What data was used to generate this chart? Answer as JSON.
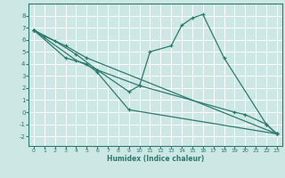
{
  "xlabel": "Humidex (Indice chaleur)",
  "bg_color": "#cde8e4",
  "grid_color": "#ffffff",
  "line_color": "#2a7a6f",
  "xlim": [
    -0.5,
    23.5
  ],
  "ylim": [
    -2.8,
    9.0
  ],
  "xticks": [
    0,
    1,
    2,
    3,
    4,
    5,
    6,
    7,
    8,
    9,
    10,
    11,
    12,
    13,
    14,
    15,
    16,
    17,
    18,
    19,
    20,
    21,
    22,
    23
  ],
  "yticks": [
    -2,
    -1,
    0,
    1,
    2,
    3,
    4,
    5,
    6,
    7,
    8
  ],
  "lines": [
    {
      "x": [
        0,
        1,
        3,
        5,
        23
      ],
      "y": [
        6.8,
        6.3,
        5.5,
        4.5,
        -1.8
      ]
    },
    {
      "x": [
        0,
        2,
        4,
        6,
        10,
        11,
        13,
        14,
        15,
        16,
        18,
        22,
        23
      ],
      "y": [
        6.8,
        5.9,
        4.8,
        3.5,
        2.2,
        5.0,
        5.5,
        7.2,
        7.8,
        8.1,
        4.5,
        -1.0,
        -1.8
      ]
    },
    {
      "x": [
        0,
        3,
        5,
        6,
        9,
        23
      ],
      "y": [
        6.8,
        4.5,
        4.0,
        3.3,
        0.2,
        -1.8
      ]
    },
    {
      "x": [
        0,
        4,
        6,
        9,
        10,
        19,
        20,
        22,
        23
      ],
      "y": [
        6.8,
        4.3,
        3.5,
        1.7,
        2.2,
        0.0,
        -0.2,
        -1.0,
        -1.8
      ]
    }
  ]
}
